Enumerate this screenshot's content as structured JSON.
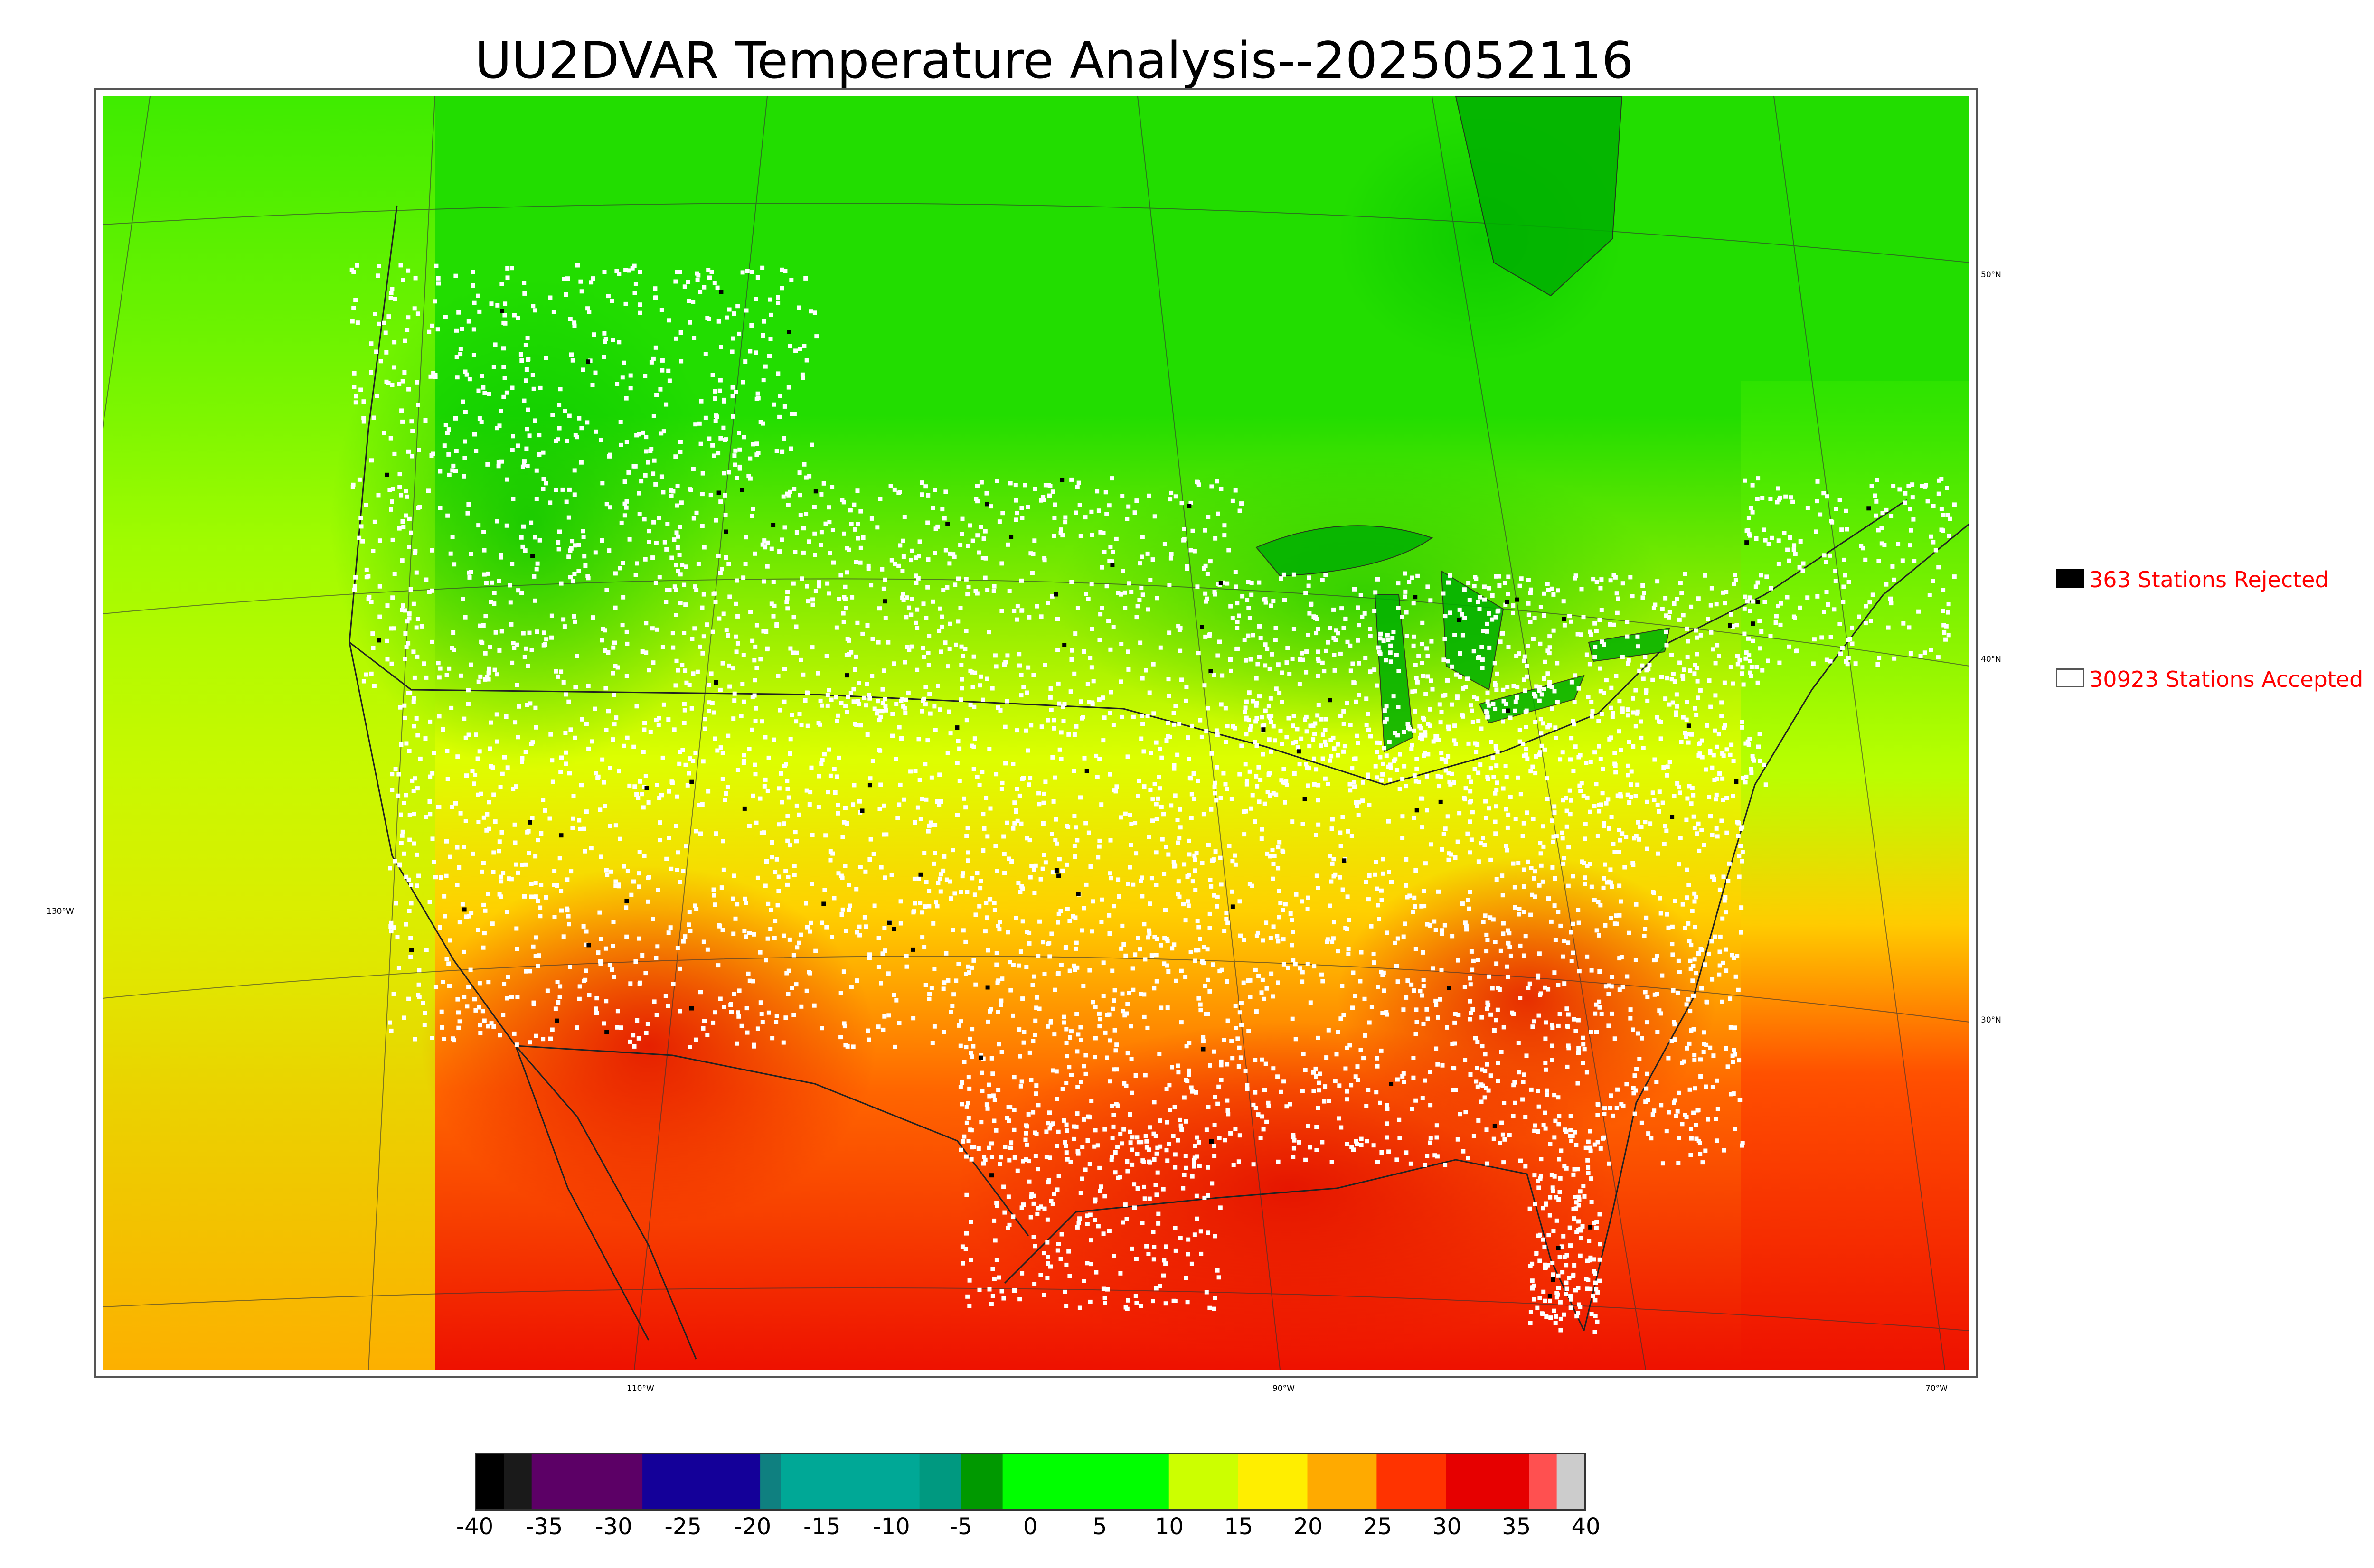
{
  "title": "UU2DVAR Temperature Analysis--2025052116",
  "map": {
    "coordinate_labels": {
      "lat_50": "50°N",
      "lat_40": "40°N",
      "lat_30": "30°N",
      "lon_130": "130°W",
      "lon_110": "110°W",
      "lon_90": "90°W",
      "lon_70": "70°W"
    },
    "temperature_zones": [
      {
        "band": "cool-north",
        "color": "#22dd00"
      },
      {
        "band": "mid",
        "color": "#ccff00"
      },
      {
        "band": "warm",
        "color": "#ffcc00"
      },
      {
        "band": "hot",
        "color": "#ff3300"
      },
      {
        "band": "hottest",
        "color": "#e60000"
      }
    ],
    "station_marker_colors": {
      "accepted": "#ffffff",
      "rejected": "#000000"
    }
  },
  "legend": {
    "rejected": {
      "label": "363 Stations Rejected",
      "count": 363,
      "swatch_color": "#000000"
    },
    "accepted": {
      "label": "30923 Stations Accepted",
      "count": 30923,
      "swatch_color": "#ffffff"
    }
  },
  "colorbar": {
    "min": -40,
    "max": 40,
    "ticks": [
      "-40",
      "-35",
      "-30",
      "-25",
      "-20",
      "-15",
      "-10",
      "-5",
      "0",
      "5",
      "10",
      "15",
      "20",
      "25",
      "30",
      "35",
      "40"
    ],
    "stops": [
      {
        "from": -40,
        "to": -38,
        "color": "#000000"
      },
      {
        "from": -38,
        "to": -36,
        "color": "#1a1a1a"
      },
      {
        "from": -36,
        "to": -28,
        "color": "#5c0066"
      },
      {
        "from": -28,
        "to": -19.5,
        "color": "#140099"
      },
      {
        "from": -19.5,
        "to": -18,
        "color": "#0f8080"
      },
      {
        "from": -18,
        "to": -8,
        "color": "#00a896"
      },
      {
        "from": -8,
        "to": -5,
        "color": "#009980"
      },
      {
        "from": -5,
        "to": -2,
        "color": "#009900"
      },
      {
        "from": -2,
        "to": 10,
        "color": "#00ff00"
      },
      {
        "from": 10,
        "to": 15,
        "color": "#ccff00"
      },
      {
        "from": 15,
        "to": 20,
        "color": "#ffee00"
      },
      {
        "from": 20,
        "to": 25,
        "color": "#ffaa00"
      },
      {
        "from": 25,
        "to": 30,
        "color": "#ff3300"
      },
      {
        "from": 30,
        "to": 36,
        "color": "#e60000"
      },
      {
        "from": 36,
        "to": 38,
        "color": "#ff5050"
      },
      {
        "from": 38,
        "to": 40,
        "color": "#cccccc"
      }
    ]
  }
}
